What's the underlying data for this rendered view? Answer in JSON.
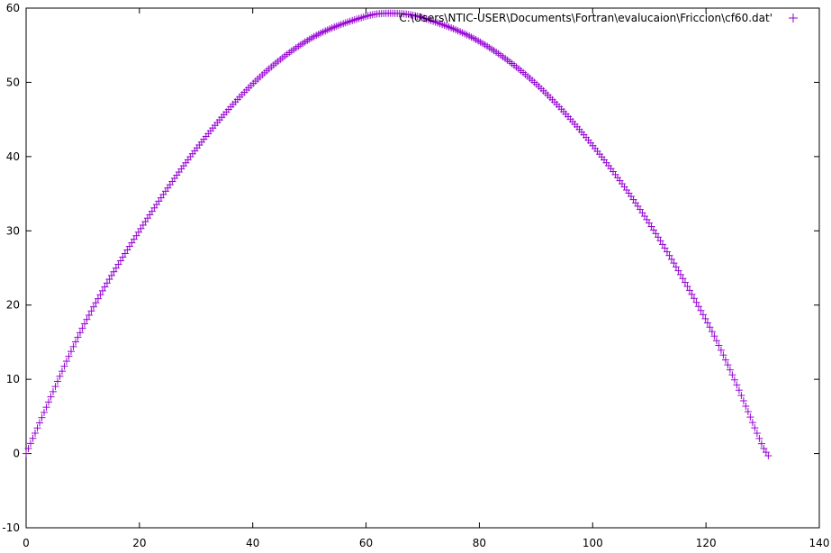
{
  "chart_data": {
    "type": "scatter",
    "xlim": [
      0,
      140
    ],
    "ylim": [
      -10,
      60
    ],
    "x_ticks": [
      0,
      20,
      40,
      60,
      80,
      100,
      120,
      140
    ],
    "y_ticks": [
      -10,
      0,
      10,
      20,
      30,
      40,
      50,
      60
    ],
    "x_tick_labels": [
      "0",
      "20",
      "40",
      "60",
      "80",
      "100",
      "120",
      "140"
    ],
    "y_tick_labels": [
      "-10",
      "0",
      "10",
      "20",
      "30",
      "40",
      "50",
      "60"
    ],
    "grid": false,
    "legend_position": "top-right",
    "series": [
      {
        "name": "C:\\Users\\NTIC-USER\\Documents\\Fortran\\evalucaion\\Friccion\\cf60.dat'",
        "color": "#9400d3",
        "marker": "plus",
        "description_points": [
          [
            0.0,
            0.0
          ],
          [
            10.0,
            17.0
          ],
          [
            20.0,
            30.0
          ],
          [
            30.0,
            41.0
          ],
          [
            40.0,
            49.8
          ],
          [
            50.0,
            55.8
          ],
          [
            60.0,
            58.9
          ],
          [
            65.0,
            59.3
          ],
          [
            70.0,
            58.7
          ],
          [
            80.0,
            55.5
          ],
          [
            90.0,
            49.8
          ],
          [
            100.0,
            41.5
          ],
          [
            110.0,
            31.0
          ],
          [
            120.0,
            18.0
          ],
          [
            125.0,
            10.0
          ],
          [
            130.0,
            1.0
          ],
          [
            131.0,
            -0.3
          ]
        ]
      }
    ]
  }
}
